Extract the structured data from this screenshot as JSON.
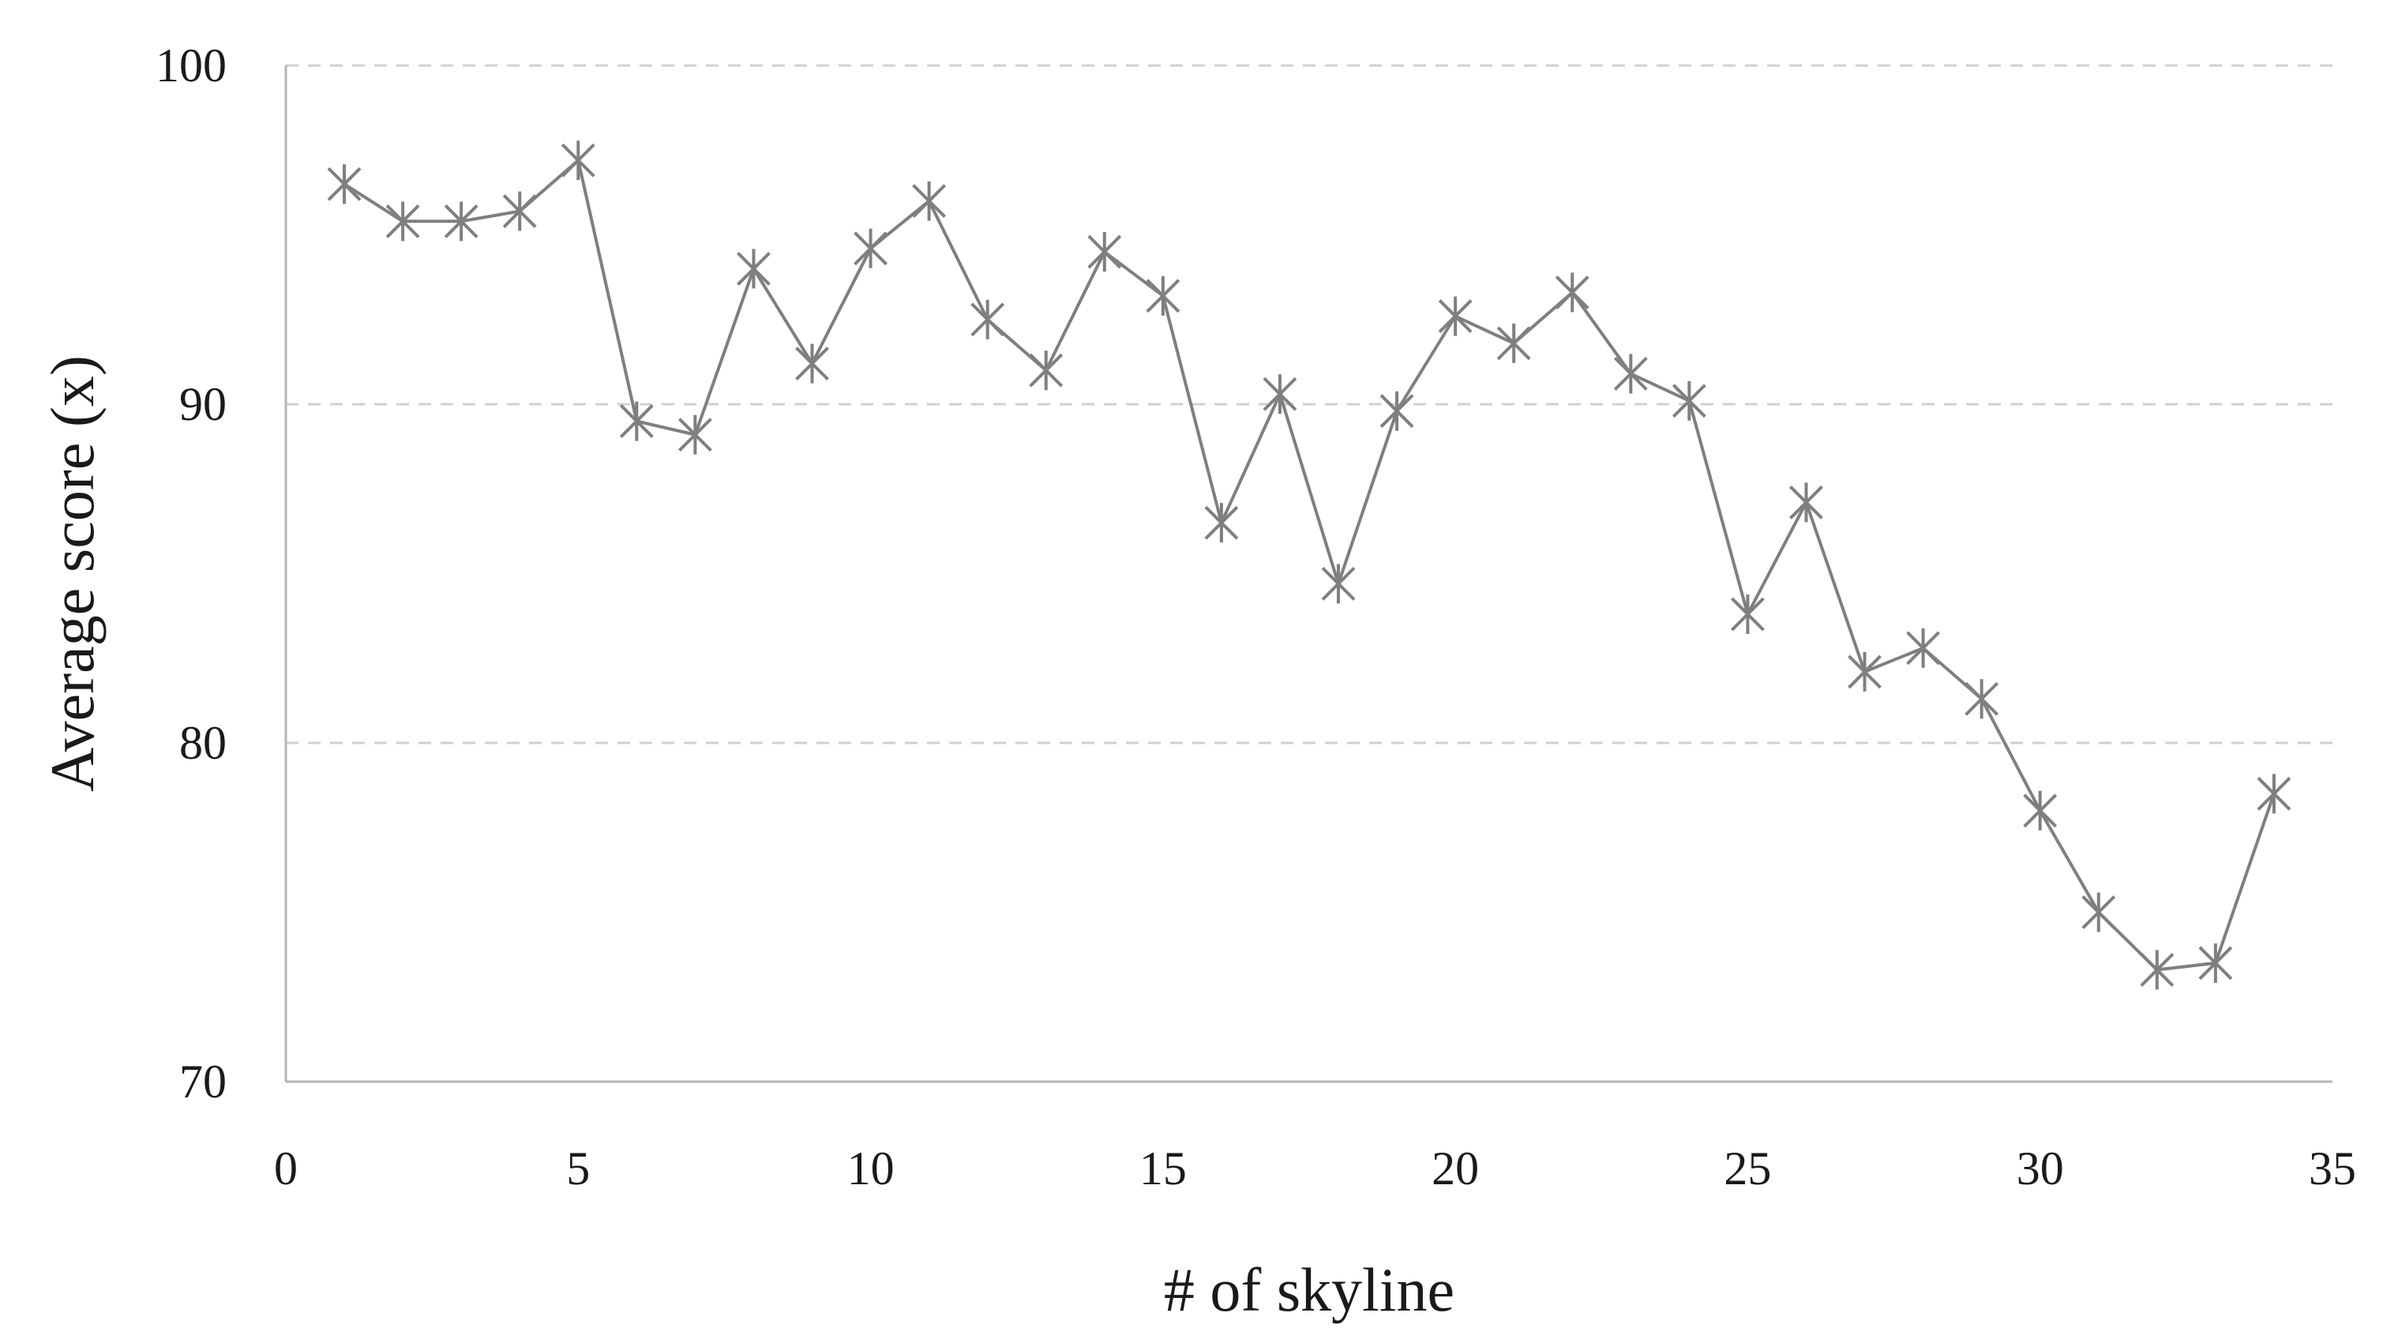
{
  "chart_data": {
    "type": "line",
    "xlabel": "# of skyline",
    "ylabel": "Average score (x)",
    "xlim": [
      0,
      35
    ],
    "ylim": [
      70,
      100
    ],
    "xticks": [
      0,
      5,
      10,
      15,
      20,
      25,
      30,
      35
    ],
    "yticks": [
      70,
      80,
      90,
      100
    ],
    "ygrid": true,
    "marker": "asterisk",
    "colors": {
      "series": "#7f7f7f",
      "grid": "#d0d0d0",
      "axis": "#b5b5b5",
      "text": "#1a1a1a"
    },
    "series": [
      {
        "x": [
          1,
          2,
          3,
          4,
          5,
          6,
          7,
          8,
          9,
          10,
          11,
          12,
          13,
          14,
          15,
          16,
          17,
          18,
          19,
          20,
          21,
          22,
          23,
          24,
          25,
          26,
          27,
          28,
          29,
          30,
          31,
          32,
          33,
          34
        ],
        "values": [
          96.5,
          95.4,
          95.4,
          95.7,
          97.2,
          89.5,
          89.1,
          94.0,
          91.2,
          94.6,
          96.0,
          92.5,
          91.0,
          94.5,
          93.2,
          86.5,
          90.3,
          84.7,
          89.8,
          92.6,
          91.8,
          93.3,
          90.9,
          90.1,
          83.8,
          87.1,
          82.1,
          82.8,
          81.3,
          78.0,
          75.0,
          73.3,
          73.5,
          78.5
        ]
      }
    ]
  }
}
